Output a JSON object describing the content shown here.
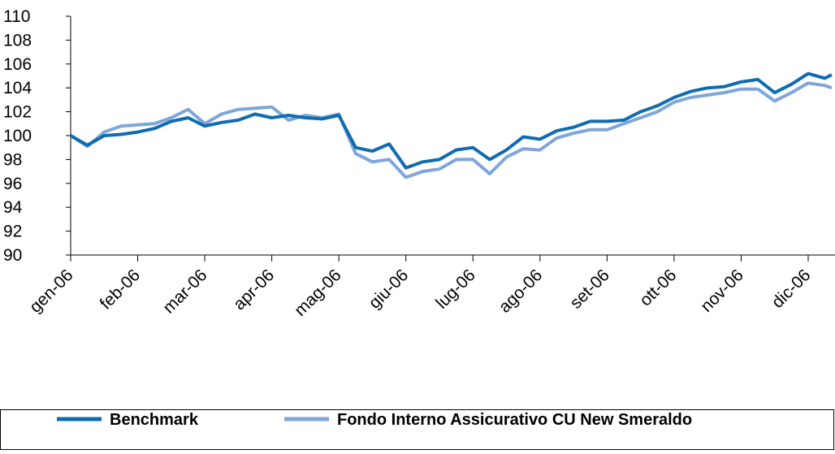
{
  "chart_data": {
    "type": "line",
    "xticks": [
      {
        "value": 0,
        "label": "gen-06"
      },
      {
        "value": 1,
        "label": "feb-06"
      },
      {
        "value": 2,
        "label": "mar-06"
      },
      {
        "value": 3,
        "label": "apr-06"
      },
      {
        "value": 4,
        "label": "mag-06"
      },
      {
        "value": 5,
        "label": "giu-06"
      },
      {
        "value": 6,
        "label": "lug-06"
      },
      {
        "value": 7,
        "label": "ago-06"
      },
      {
        "value": 8,
        "label": "set-06"
      },
      {
        "value": 9,
        "label": "ott-06"
      },
      {
        "value": 10,
        "label": "nov-06"
      },
      {
        "value": 11,
        "label": "dic-06"
      }
    ],
    "xlim": [
      0,
      11.4
    ],
    "x": [
      0,
      0.25,
      0.5,
      0.75,
      1,
      1.25,
      1.5,
      1.75,
      2,
      2.25,
      2.5,
      2.75,
      3,
      3.25,
      3.5,
      3.75,
      4,
      4.25,
      4.5,
      4.75,
      5,
      5.25,
      5.5,
      5.75,
      6,
      6.25,
      6.5,
      6.75,
      7,
      7.25,
      7.5,
      7.75,
      8,
      8.25,
      8.5,
      8.75,
      9,
      9.25,
      9.5,
      9.75,
      10,
      10.25,
      10.5,
      10.75,
      11,
      11.25,
      11.35
    ],
    "ylim": [
      90,
      110
    ],
    "yticks": [
      90,
      92,
      94,
      96,
      98,
      100,
      102,
      104,
      106,
      108,
      110
    ],
    "legend": "bottom",
    "series": [
      {
        "name": "Benchmark",
        "color": "#0f6cb0",
        "values": [
          100,
          99.2,
          100,
          100.1,
          100.3,
          100.6,
          101.2,
          101.5,
          100.8,
          101.1,
          101.3,
          101.8,
          101.5,
          101.7,
          101.5,
          101.4,
          101.7,
          99,
          98.7,
          99.3,
          97.3,
          97.8,
          98,
          98.8,
          99,
          98,
          98.8,
          99.9,
          99.7,
          100.4,
          100.7,
          101.2,
          101.2,
          101.3,
          102,
          102.5,
          103.2,
          103.7,
          104,
          104.1,
          104.5,
          104.7,
          103.6,
          104.3,
          105.2,
          104.8,
          105.1
        ]
      },
      {
        "name": "Fondo Interno Assicurativo CU New Smeraldo",
        "color": "#7fa6d9",
        "values": [
          100,
          99.1,
          100.3,
          100.8,
          100.9,
          101,
          101.5,
          102.2,
          101,
          101.8,
          102.2,
          102.3,
          102.4,
          101.3,
          101.7,
          101.5,
          101.8,
          98.5,
          97.8,
          98,
          96.5,
          97,
          97.2,
          98,
          98,
          96.8,
          98.2,
          98.9,
          98.8,
          99.8,
          100.2,
          100.5,
          100.5,
          101,
          101.5,
          102,
          102.8,
          103.2,
          103.4,
          103.6,
          103.9,
          103.9,
          102.9,
          103.6,
          104.4,
          104.2,
          104
        ]
      }
    ]
  }
}
